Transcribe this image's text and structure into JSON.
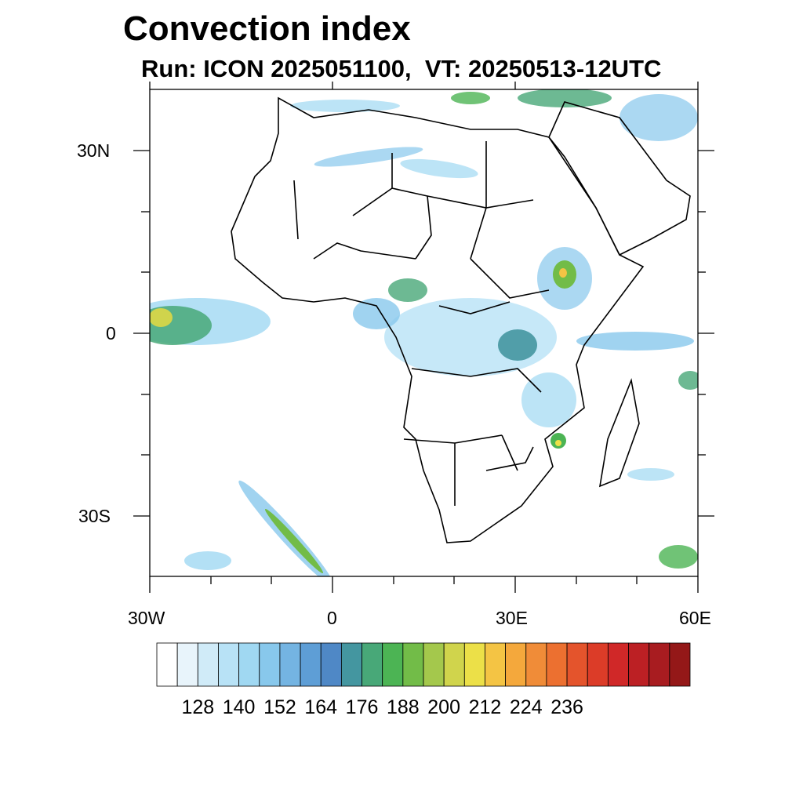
{
  "title": "Convection index",
  "subtitle": "Run: ICON 2025051100,  VT: 20250513-12UTC",
  "axes": {
    "lat_labels": [
      "30N",
      "0",
      "30S"
    ],
    "lon_labels": [
      "30W",
      "0",
      "30E",
      "60E"
    ],
    "lon_range": [
      -30,
      60
    ],
    "lat_range": [
      -40,
      40
    ]
  },
  "colorbar": {
    "labels": [
      "128",
      "140",
      "152",
      "164",
      "176",
      "188",
      "200",
      "212",
      "224",
      "236"
    ],
    "colors": [
      "#ffffff",
      "#e8f4fb",
      "#d0ebf8",
      "#b8e2f6",
      "#a0d8f2",
      "#88c8ec",
      "#74b4e2",
      "#5e9ed6",
      "#4f88c6",
      "#4496a0",
      "#48a878",
      "#4cb454",
      "#72bc48",
      "#a4c84c",
      "#d0d44c",
      "#ece048",
      "#f4c444",
      "#f4a83c",
      "#f08c38",
      "#ec7030",
      "#e4542c",
      "#dc3c28",
      "#d02828",
      "#bc2024",
      "#a81c20",
      "#941818"
    ]
  }
}
